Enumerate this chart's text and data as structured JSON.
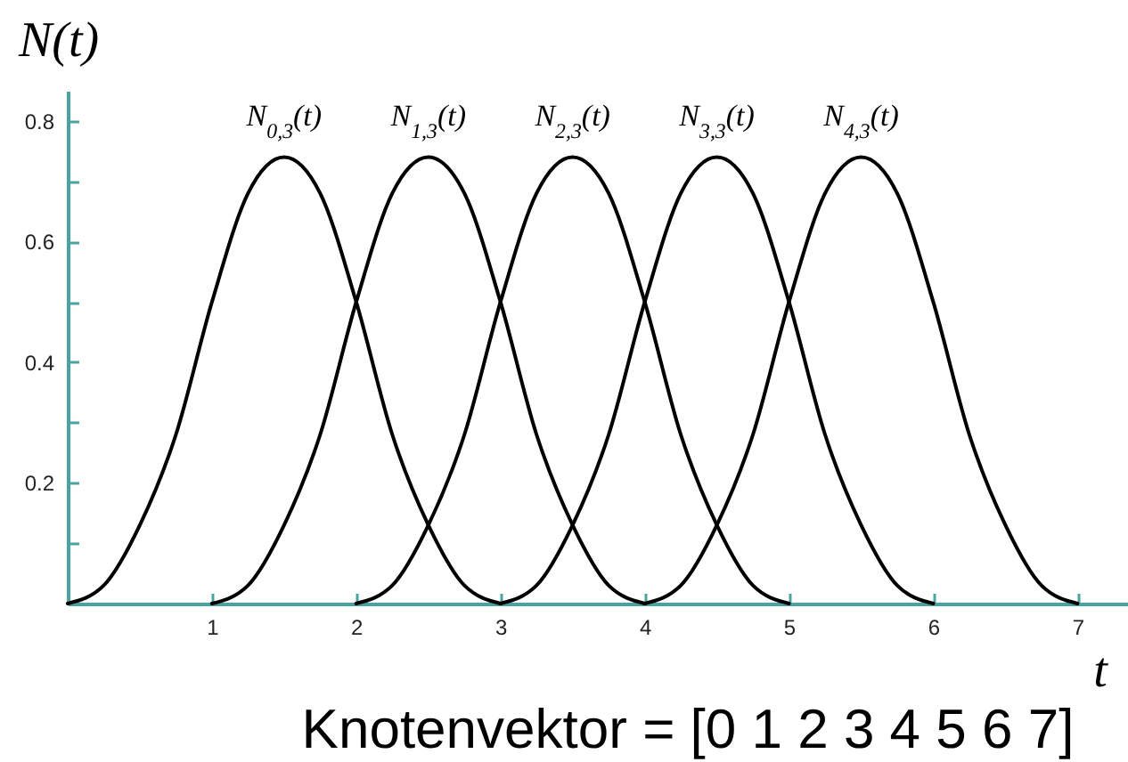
{
  "chart_data": {
    "type": "line",
    "ylabel": "N(t)",
    "xlabel": "t",
    "annotations": [
      "Knotenvektor = [0 1 2 3 4 5 6 7]"
    ],
    "xlim": [
      0,
      7.35
    ],
    "xticks": [
      1,
      2,
      3,
      4,
      5,
      6,
      7
    ],
    "ylim": [
      0,
      0.85
    ],
    "yticks": [
      {
        "value": 0.1,
        "label": null
      },
      0.2,
      {
        "value": 0.3,
        "label": null
      },
      0.4,
      {
        "value": 0.5,
        "label": null
      },
      0.6,
      {
        "value": 0.7,
        "label": null
      },
      0.8
    ],
    "grid": false,
    "series": [
      {
        "name": "N$_{0,3}$(t)",
        "color": "#000000",
        "x": [
          0,
          0.25,
          0.5,
          0.75,
          1,
          1.25,
          1.5,
          1.75,
          2,
          2.25,
          2.5,
          2.75,
          3
        ],
        "values": [
          0,
          0.03,
          0.13,
          0.28,
          0.5,
          0.68,
          0.74,
          0.68,
          0.5,
          0.28,
          0.13,
          0.03,
          0
        ]
      },
      {
        "name": "N$_{1,3}$(t)",
        "color": "#000000",
        "x": [
          1,
          1.25,
          1.5,
          1.75,
          2,
          2.25,
          2.5,
          2.75,
          3,
          3.25,
          3.5,
          3.75,
          4
        ],
        "values": [
          0,
          0.03,
          0.13,
          0.28,
          0.5,
          0.68,
          0.74,
          0.68,
          0.5,
          0.28,
          0.13,
          0.03,
          0
        ]
      },
      {
        "name": "N$_{2,3}$(t)",
        "color": "#000000",
        "x": [
          2,
          2.25,
          2.5,
          2.75,
          3,
          3.25,
          3.5,
          3.75,
          4,
          4.25,
          4.5,
          4.75,
          5
        ],
        "values": [
          0,
          0.03,
          0.13,
          0.28,
          0.5,
          0.68,
          0.74,
          0.68,
          0.5,
          0.28,
          0.13,
          0.03,
          0
        ]
      },
      {
        "name": "N$_{3,3}$(t)",
        "color": "#000000",
        "x": [
          3,
          3.25,
          3.5,
          3.75,
          4,
          4.25,
          4.5,
          4.75,
          5,
          5.25,
          5.5,
          5.75,
          6
        ],
        "values": [
          0,
          0.03,
          0.13,
          0.28,
          0.5,
          0.68,
          0.74,
          0.68,
          0.5,
          0.28,
          0.13,
          0.03,
          0
        ]
      },
      {
        "name": "N$_{4,3}$(t)",
        "color": "#000000",
        "x": [
          4,
          4.25,
          4.5,
          4.75,
          5,
          5.25,
          5.5,
          5.75,
          6,
          6.25,
          6.5,
          6.75,
          7
        ],
        "values": [
          0,
          0.03,
          0.13,
          0.28,
          0.5,
          0.68,
          0.74,
          0.68,
          0.5,
          0.28,
          0.13,
          0.03,
          0
        ]
      }
    ]
  }
}
